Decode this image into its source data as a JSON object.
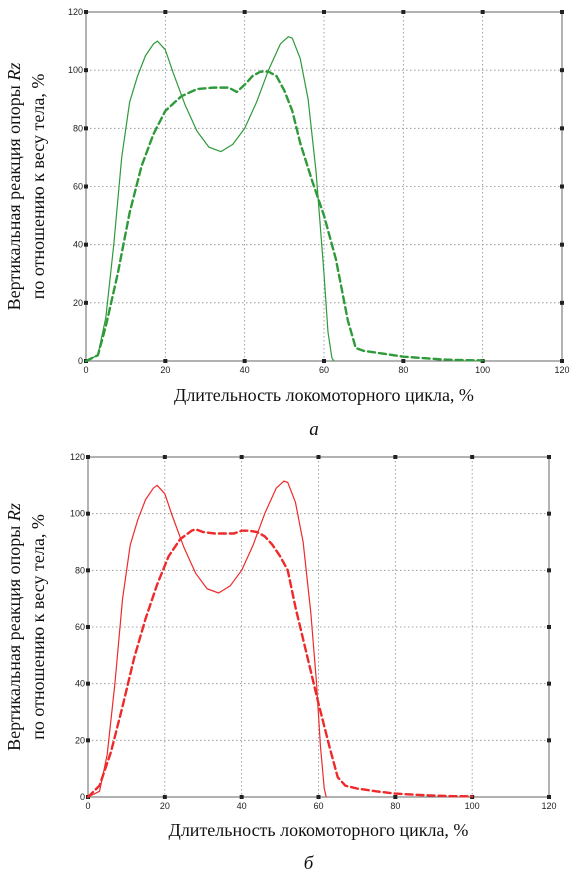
{
  "chart_data": [
    {
      "type": "line",
      "panel_label": "а",
      "xlabel": "Длительность локомоторного цикла, %",
      "ylabel_line1_prefix": "Вертикальная реакция опоры ",
      "ylabel_line1_italic": "Rz",
      "ylabel_line2": "по отношению к весу тела, %",
      "xlim": [
        0,
        120
      ],
      "ylim": [
        0,
        120
      ],
      "x_ticks": [
        0,
        20,
        40,
        60,
        80,
        100,
        120
      ],
      "y_ticks": [
        0,
        20,
        40,
        60,
        80,
        100,
        120
      ],
      "grid": true,
      "color": "#2e9a3a",
      "series": [
        {
          "style": "solid",
          "x": [
            0,
            3,
            5,
            7,
            9,
            11,
            13,
            15,
            17,
            18,
            20,
            22,
            25,
            28,
            31,
            34,
            37,
            40,
            43,
            46,
            49,
            51,
            52,
            54,
            56,
            58,
            60,
            61,
            62,
            62.5
          ],
          "y": [
            0,
            2,
            15,
            40,
            70,
            89,
            98,
            105,
            109,
            110,
            107,
            99,
            88,
            79,
            73.5,
            72,
            74.5,
            80,
            89,
            100,
            109,
            111.5,
            111,
            104,
            90,
            65,
            30,
            10,
            1,
            0
          ]
        },
        {
          "style": "dashed",
          "x": [
            0,
            3,
            5,
            8,
            11,
            14,
            17,
            20,
            24,
            28,
            32,
            36,
            38,
            40,
            42,
            44,
            46,
            48,
            50,
            52,
            54,
            57,
            60,
            63,
            66,
            68,
            70,
            75,
            80,
            85,
            90,
            95,
            100
          ],
          "y": [
            0,
            2,
            12,
            30,
            51,
            67,
            78,
            86,
            91,
            93.5,
            94,
            94,
            92.5,
            95,
            98,
            99.5,
            99.5,
            98,
            93,
            86,
            75,
            62,
            50,
            35,
            14,
            4.5,
            3.5,
            2.5,
            1.5,
            1,
            0.5,
            0.3,
            0.2
          ]
        }
      ]
    },
    {
      "type": "line",
      "panel_label": "б",
      "xlabel": "Длительность локомоторного цикла, %",
      "ylabel_line1_prefix": "Вертикальная реакция опоры ",
      "ylabel_line1_italic": "Rz",
      "ylabel_line2": "по отношению к весу тела, %",
      "xlim": [
        0,
        120
      ],
      "ylim": [
        0,
        120
      ],
      "x_ticks": [
        0,
        20,
        40,
        60,
        80,
        100,
        120
      ],
      "y_ticks": [
        0,
        20,
        40,
        60,
        80,
        100,
        120
      ],
      "grid": true,
      "color": "#ee2a2a",
      "series": [
        {
          "style": "solid",
          "x": [
            0,
            3,
            5,
            7,
            9,
            11,
            13,
            15,
            17,
            18,
            20,
            22,
            25,
            28,
            31,
            34,
            37,
            40,
            43,
            46,
            49,
            51,
            52,
            54,
            56,
            58,
            59.5,
            60.5,
            61.5,
            62
          ],
          "y": [
            0,
            2,
            15,
            40,
            70,
            89,
            98,
            105,
            109,
            110,
            107,
            99,
            88,
            79,
            73.5,
            72,
            74.5,
            80,
            89,
            100,
            109,
            111.5,
            111,
            104,
            90,
            65,
            40,
            18,
            3,
            0
          ]
        },
        {
          "style": "dashed",
          "x": [
            0,
            3,
            6,
            9,
            12,
            15,
            18,
            21,
            24,
            27,
            28,
            30,
            33,
            36,
            38,
            40,
            42,
            44,
            46,
            48,
            50,
            52,
            54,
            57,
            60,
            63,
            65,
            67,
            70,
            75,
            80,
            85,
            90,
            95,
            100
          ],
          "y": [
            0,
            4,
            16,
            32,
            49,
            63,
            75,
            85,
            91,
            94,
            94.5,
            93.5,
            93,
            93,
            93,
            94,
            94,
            93.5,
            92,
            89,
            85,
            80,
            67,
            50,
            33,
            17,
            7,
            4,
            3,
            2,
            1.2,
            0.8,
            0.5,
            0.3,
            0.2
          ]
        }
      ]
    }
  ]
}
